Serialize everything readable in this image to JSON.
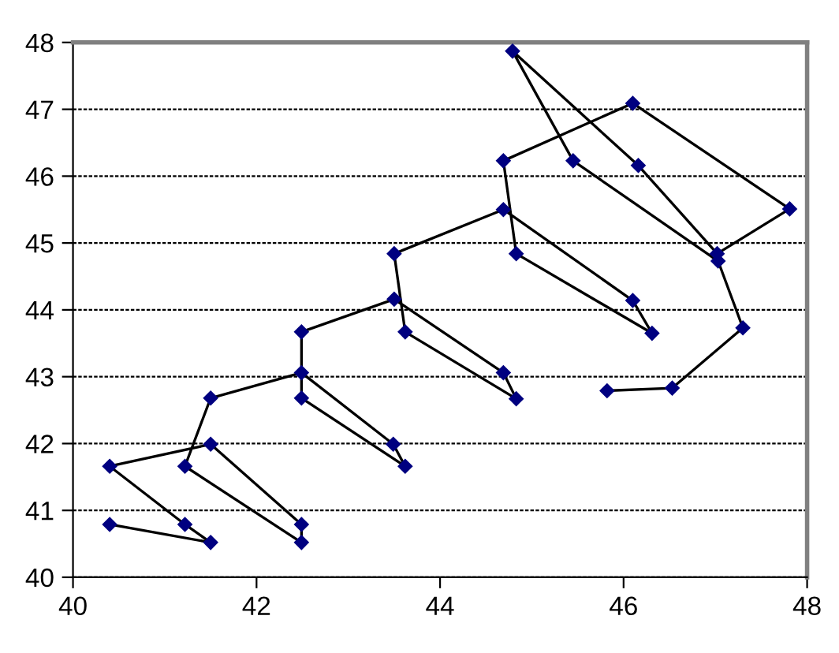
{
  "chart_data": {
    "type": "line",
    "marker": "diamond",
    "line_style": "solid",
    "grid": "y",
    "xlim": [
      40,
      48
    ],
    "xticks": [
      40,
      42,
      44,
      46,
      48
    ],
    "ylim": [
      40,
      48
    ],
    "yticks": [
      40,
      41,
      42,
      43,
      44,
      45,
      46,
      47,
      48
    ],
    "series": [
      {
        "color": "#000080",
        "x": [
          40.4,
          41.5,
          41.22,
          40.4,
          41.5,
          42.49,
          42.49,
          41.22,
          41.5,
          42.49,
          43.49,
          43.62,
          42.49,
          42.49,
          43.5,
          44.69,
          44.83,
          43.62,
          43.5,
          44.69,
          46.1,
          46.31,
          44.83,
          44.69,
          46.1,
          47.81,
          47.02,
          46.16,
          44.79,
          45.45,
          47.03,
          47.3,
          46.53,
          45.82
        ],
        "values": [
          40.79,
          40.52,
          40.79,
          41.66,
          41.99,
          40.79,
          40.52,
          41.66,
          42.68,
          43.06,
          41.99,
          41.66,
          42.68,
          43.67,
          44.16,
          43.06,
          42.67,
          43.67,
          44.84,
          45.5,
          44.14,
          43.65,
          44.84,
          46.23,
          47.09,
          45.51,
          44.84,
          46.16,
          47.87,
          46.23,
          44.73,
          43.73,
          42.83,
          42.79
        ]
      }
    ]
  }
}
